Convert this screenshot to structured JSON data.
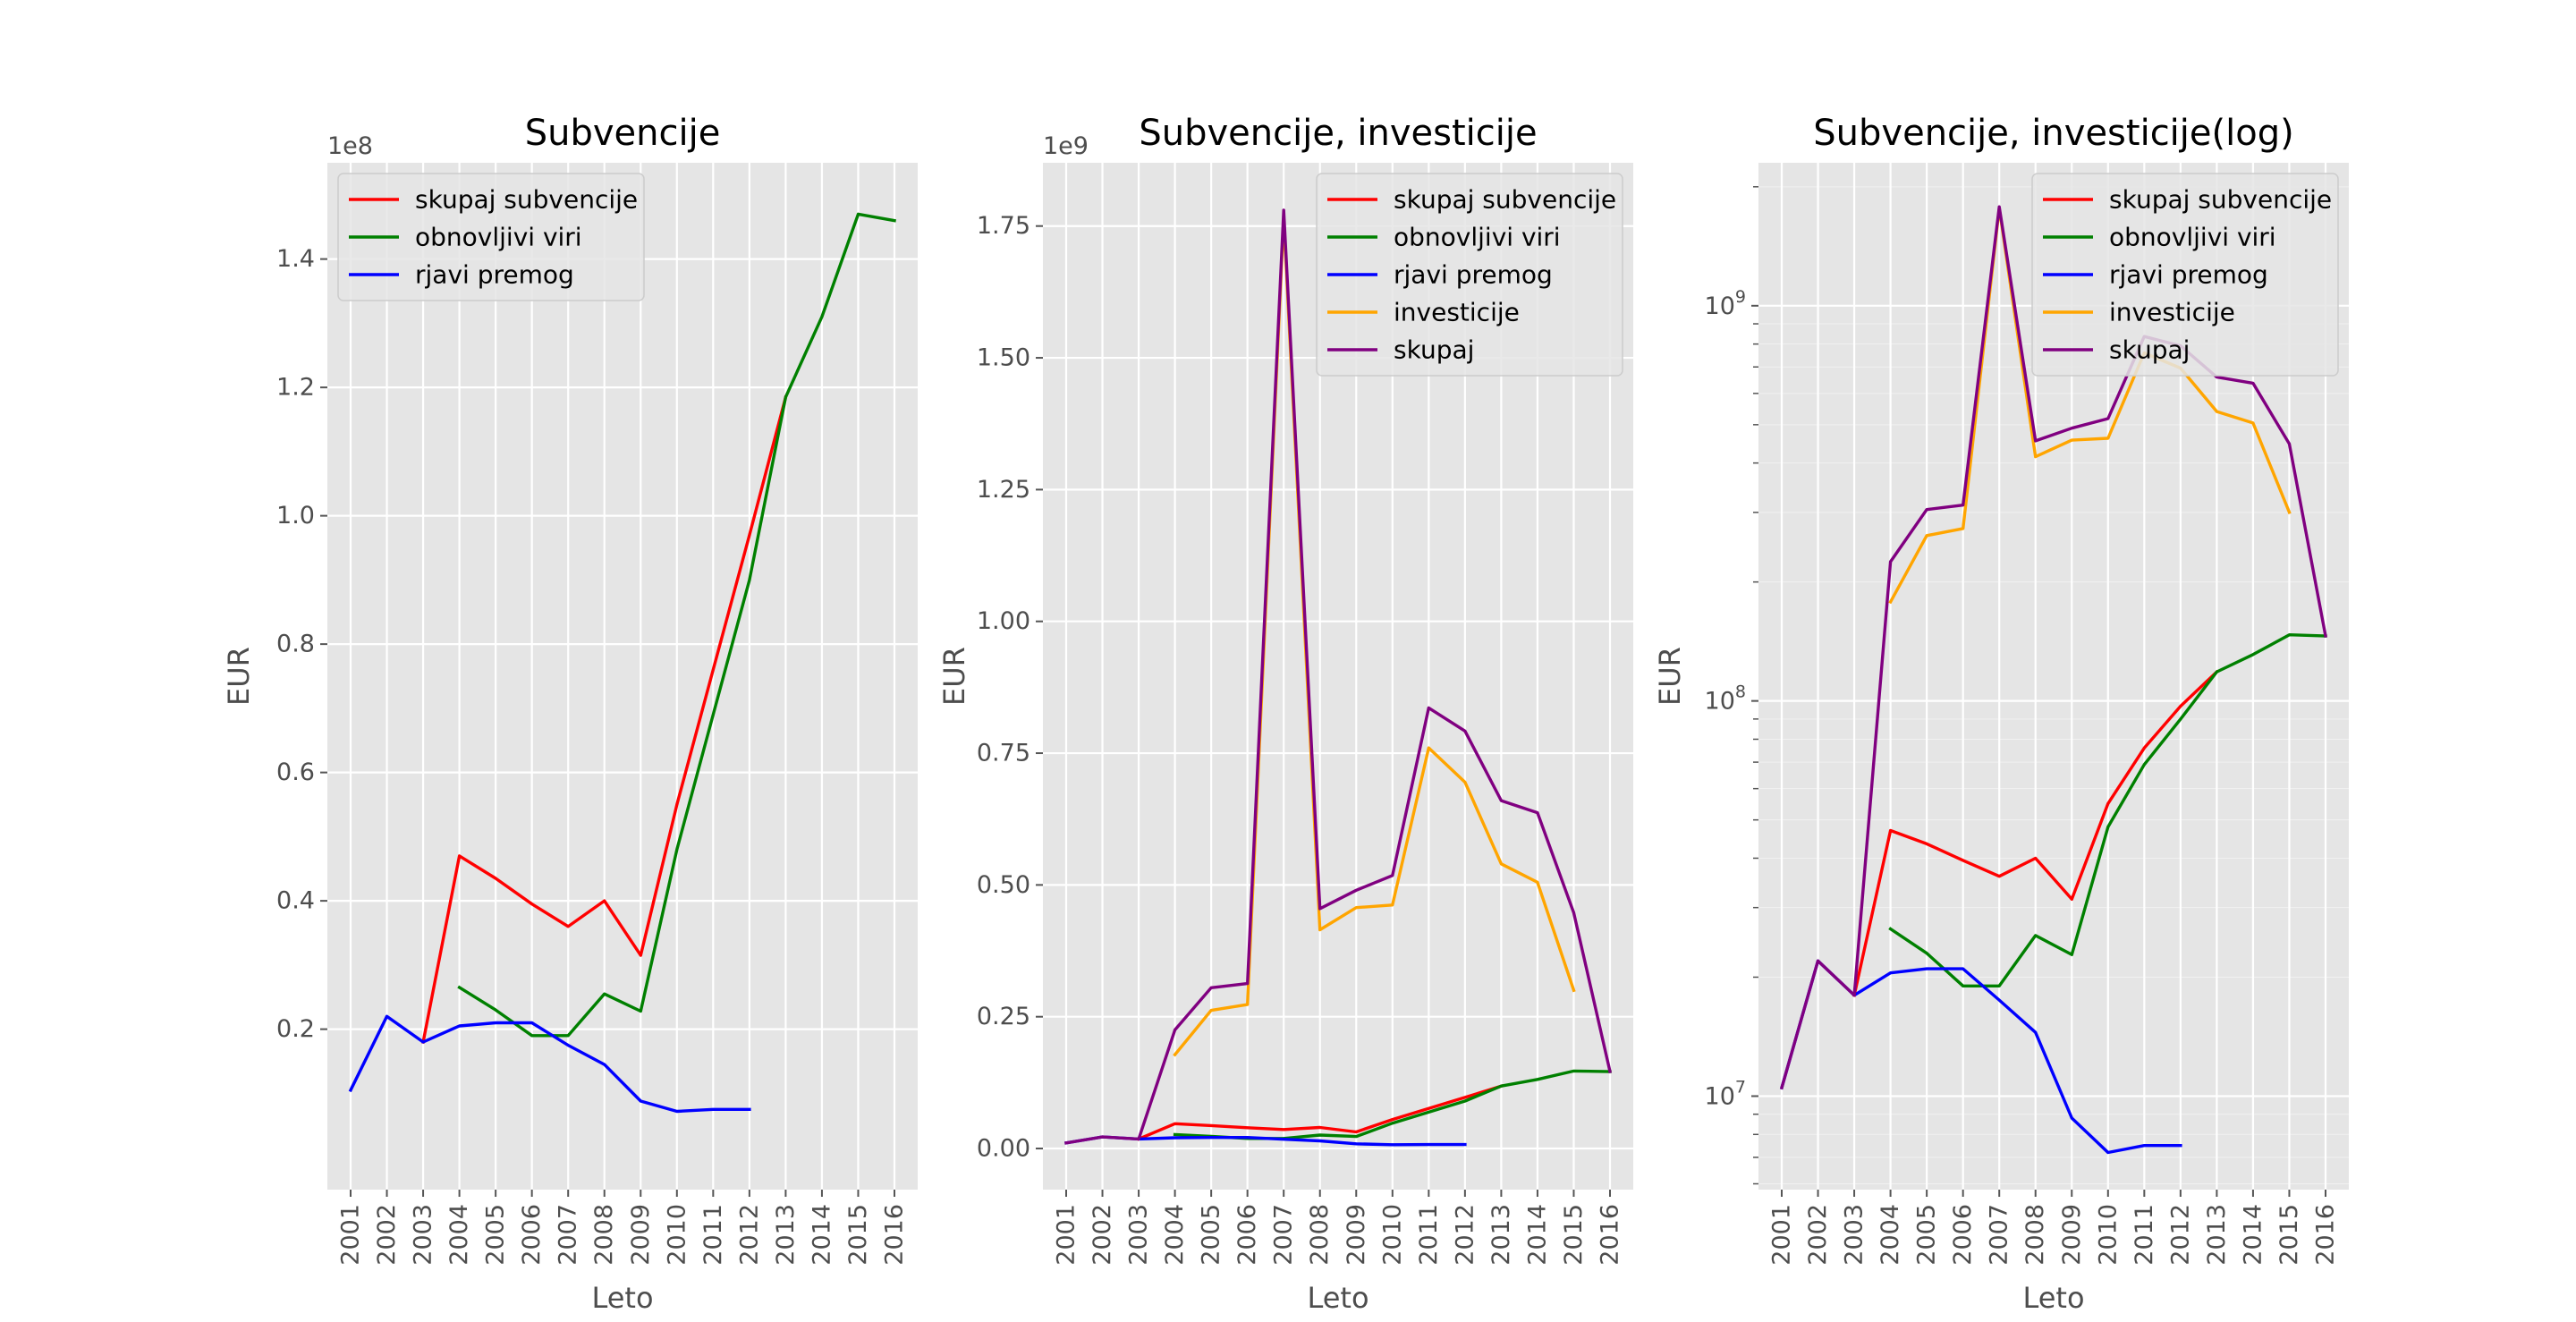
{
  "chart_data": [
    {
      "type": "line",
      "title": "Subvencije",
      "xlabel": "Leto",
      "ylabel": "EUR",
      "offset_label": "1e8",
      "yscale": "linear",
      "categories": [
        "2001",
        "2002",
        "2003",
        "2004",
        "2005",
        "2006",
        "2007",
        "2008",
        "2009",
        "2010",
        "2011",
        "2012",
        "2013",
        "2014",
        "2015",
        "2016"
      ],
      "ylim": [
        -0.05,
        1.55
      ],
      "yticks": [
        0.2,
        0.4,
        0.6,
        0.8,
        1.0,
        1.2,
        1.4
      ],
      "ytick_labels": [
        "0.2",
        "0.4",
        "0.6",
        "0.8",
        "1.0",
        "1.2",
        "1.4"
      ],
      "legend_position": "upper-left",
      "grid": true,
      "series": [
        {
          "name": "skupaj subvencije",
          "color": "#ff0000",
          "values": [
            null,
            null,
            0.18,
            0.47,
            0.435,
            0.395,
            0.36,
            0.4,
            0.315,
            0.55,
            0.76,
            0.97,
            1.185,
            null,
            null,
            null
          ]
        },
        {
          "name": "obnovljivi viri",
          "color": "#008000",
          "values": [
            null,
            null,
            null,
            0.265,
            0.23,
            0.19,
            0.19,
            0.255,
            0.228,
            0.48,
            0.69,
            0.9,
            1.185,
            1.31,
            1.47,
            1.46
          ]
        },
        {
          "name": "rjavi premog",
          "color": "#0000ff",
          "values": [
            0.105,
            0.22,
            0.18,
            0.205,
            0.21,
            0.21,
            0.175,
            0.145,
            0.088,
            0.072,
            0.075,
            0.075,
            null,
            null,
            null,
            null
          ]
        }
      ]
    },
    {
      "type": "line",
      "title": "Subvencije, investicije",
      "xlabel": "Leto",
      "ylabel": "EUR",
      "offset_label": "1e9",
      "yscale": "linear",
      "categories": [
        "2001",
        "2002",
        "2003",
        "2004",
        "2005",
        "2006",
        "2007",
        "2008",
        "2009",
        "2010",
        "2011",
        "2012",
        "2013",
        "2014",
        "2015",
        "2016"
      ],
      "ylim": [
        -0.078,
        1.87
      ],
      "yticks": [
        0.0,
        0.25,
        0.5,
        0.75,
        1.0,
        1.25,
        1.5,
        1.75
      ],
      "ytick_labels": [
        "0.00",
        "0.25",
        "0.50",
        "0.75",
        "1.00",
        "1.25",
        "1.50",
        "1.75"
      ],
      "legend_position": "upper-right",
      "grid": true,
      "series": [
        {
          "name": "skupaj subvencije",
          "color": "#ff0000",
          "values": [
            null,
            null,
            0.018,
            0.047,
            0.0435,
            0.0395,
            0.036,
            0.04,
            0.0315,
            0.055,
            0.076,
            0.097,
            0.1185,
            null,
            null,
            null
          ]
        },
        {
          "name": "obnovljivi viri",
          "color": "#008000",
          "values": [
            null,
            null,
            null,
            0.0265,
            0.023,
            0.019,
            0.019,
            0.0255,
            0.0228,
            0.048,
            0.069,
            0.09,
            0.1185,
            0.131,
            0.147,
            0.146
          ]
        },
        {
          "name": "rjavi premog",
          "color": "#0000ff",
          "values": [
            0.0105,
            0.022,
            0.018,
            0.0205,
            0.021,
            0.021,
            0.0175,
            0.0145,
            0.0088,
            0.0072,
            0.0075,
            0.0075,
            null,
            null,
            null,
            null
          ]
        },
        {
          "name": "investicije",
          "color": "#ffa500",
          "values": [
            null,
            null,
            null,
            0.178,
            0.262,
            0.273,
            1.765,
            0.415,
            0.457,
            0.462,
            0.76,
            0.695,
            0.54,
            0.505,
            0.3,
            null
          ]
        },
        {
          "name": "skupaj",
          "color": "#800080",
          "values": [
            0.0105,
            0.022,
            0.018,
            0.225,
            0.305,
            0.313,
            1.78,
            0.455,
            0.49,
            0.518,
            0.836,
            0.792,
            0.66,
            0.637,
            0.447,
            0.146
          ]
        }
      ]
    },
    {
      "type": "line",
      "title": "Subvencije, investicije(log)",
      "xlabel": "Leto",
      "ylabel": "EUR",
      "yscale": "log",
      "categories": [
        "2001",
        "2002",
        "2003",
        "2004",
        "2005",
        "2006",
        "2007",
        "2008",
        "2009",
        "2010",
        "2011",
        "2012",
        "2013",
        "2014",
        "2015",
        "2016"
      ],
      "ylim": [
        5800000,
        2300000000
      ],
      "yticks": [
        10000000,
        100000000,
        1000000000
      ],
      "ytick_labels": [
        {
          "base": "10",
          "exp": "7"
        },
        {
          "base": "10",
          "exp": "8"
        },
        {
          "base": "10",
          "exp": "9"
        }
      ],
      "legend_position": "upper-right",
      "grid": true,
      "series": [
        {
          "name": "skupaj subvencije",
          "color": "#ff0000",
          "values": [
            null,
            null,
            18000000,
            47000000,
            43500000,
            39500000,
            36000000,
            40000000,
            31500000,
            55000000,
            76000000,
            97000000,
            118500000,
            null,
            null,
            null
          ]
        },
        {
          "name": "obnovljivi viri",
          "color": "#008000",
          "values": [
            null,
            null,
            null,
            26500000,
            23000000,
            19000000,
            19000000,
            25500000,
            22800000,
            48000000,
            69000000,
            90000000,
            118500000,
            131000000,
            147000000,
            146000000
          ]
        },
        {
          "name": "rjavi premog",
          "color": "#0000ff",
          "values": [
            10500000,
            22000000,
            18000000,
            20500000,
            21000000,
            21000000,
            17500000,
            14500000,
            8800000,
            7200000,
            7500000,
            7500000,
            null,
            null,
            null,
            null
          ]
        },
        {
          "name": "investicije",
          "color": "#ffa500",
          "values": [
            null,
            null,
            null,
            178000000,
            262000000,
            273000000,
            1765000000,
            415000000,
            457000000,
            462000000,
            760000000,
            695000000,
            540000000,
            505000000,
            300000000,
            null
          ]
        },
        {
          "name": "skupaj",
          "color": "#800080",
          "values": [
            10500000,
            22000000,
            18000000,
            225000000,
            305000000,
            313000000,
            1780000000,
            455000000,
            490000000,
            518000000,
            836000000,
            792000000,
            660000000,
            637000000,
            447000000,
            146000000
          ]
        }
      ]
    }
  ]
}
